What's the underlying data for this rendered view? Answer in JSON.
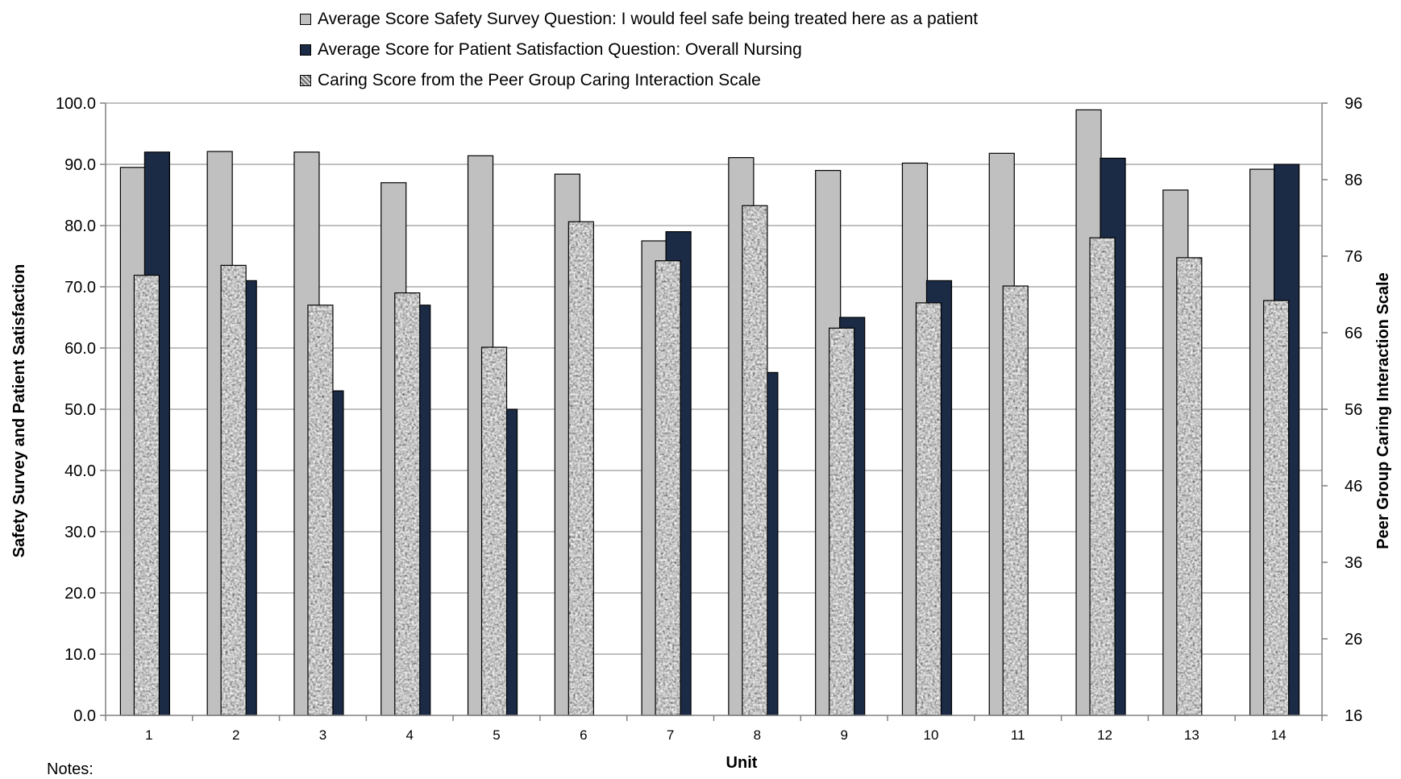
{
  "chart_data": {
    "type": "bar",
    "categories": [
      "1",
      "2",
      "3",
      "4",
      "5",
      "6",
      "7",
      "8",
      "9",
      "10",
      "11",
      "12",
      "13",
      "14"
    ],
    "xlabel": "Unit",
    "ylabel": "Safety Survey and Patient Satisfaction",
    "y2label": "Peer Group Caring Interaction Scale",
    "ylim": [
      0,
      100
    ],
    "y2lim": [
      16,
      96
    ],
    "yticks": [
      "0.0",
      "10.0",
      "20.0",
      "30.0",
      "40.0",
      "50.0",
      "60.0",
      "70.0",
      "80.0",
      "90.0",
      "100.0"
    ],
    "y2ticks": [
      "16",
      "26",
      "36",
      "46",
      "56",
      "66",
      "76",
      "86",
      "96"
    ],
    "grid": true,
    "legend_position": "top",
    "series": [
      {
        "name": "Average Score Safety Survey Question: I would feel safe being treated here as a patient",
        "axis": "left",
        "color": "#c0c0c0",
        "values": [
          89.5,
          92.1,
          92.0,
          87.0,
          91.4,
          88.4,
          77.5,
          91.1,
          89.0,
          90.2,
          91.8,
          98.9,
          85.8,
          89.2
        ]
      },
      {
        "name": "Average Score for Patient Satisfaction Question: Overall Nursing",
        "axis": "left",
        "color": "#1b2a45",
        "values": [
          92,
          71,
          53,
          67,
          50,
          null,
          79,
          56,
          65,
          71,
          null,
          91,
          null,
          90
        ]
      },
      {
        "name": "Caring Score from the Peer Group Caring Interaction Scale",
        "axis": "right",
        "color": "#9a9a9a",
        "pattern": "speckled",
        "values": [
          73.5,
          74.8,
          69.6,
          71.2,
          64.1,
          80.5,
          75.4,
          82.6,
          66.6,
          69.9,
          72.1,
          78.4,
          75.8,
          70.2
        ]
      }
    ]
  },
  "legend_labels": [
    "Average Score Safety Survey Question: I would feel safe being treated here as a patient",
    "Average Score for Patient Satisfaction Question: Overall Nursing",
    "Caring Score from the Peer Group Caring Interaction Scale"
  ],
  "notes_label": "Notes:"
}
